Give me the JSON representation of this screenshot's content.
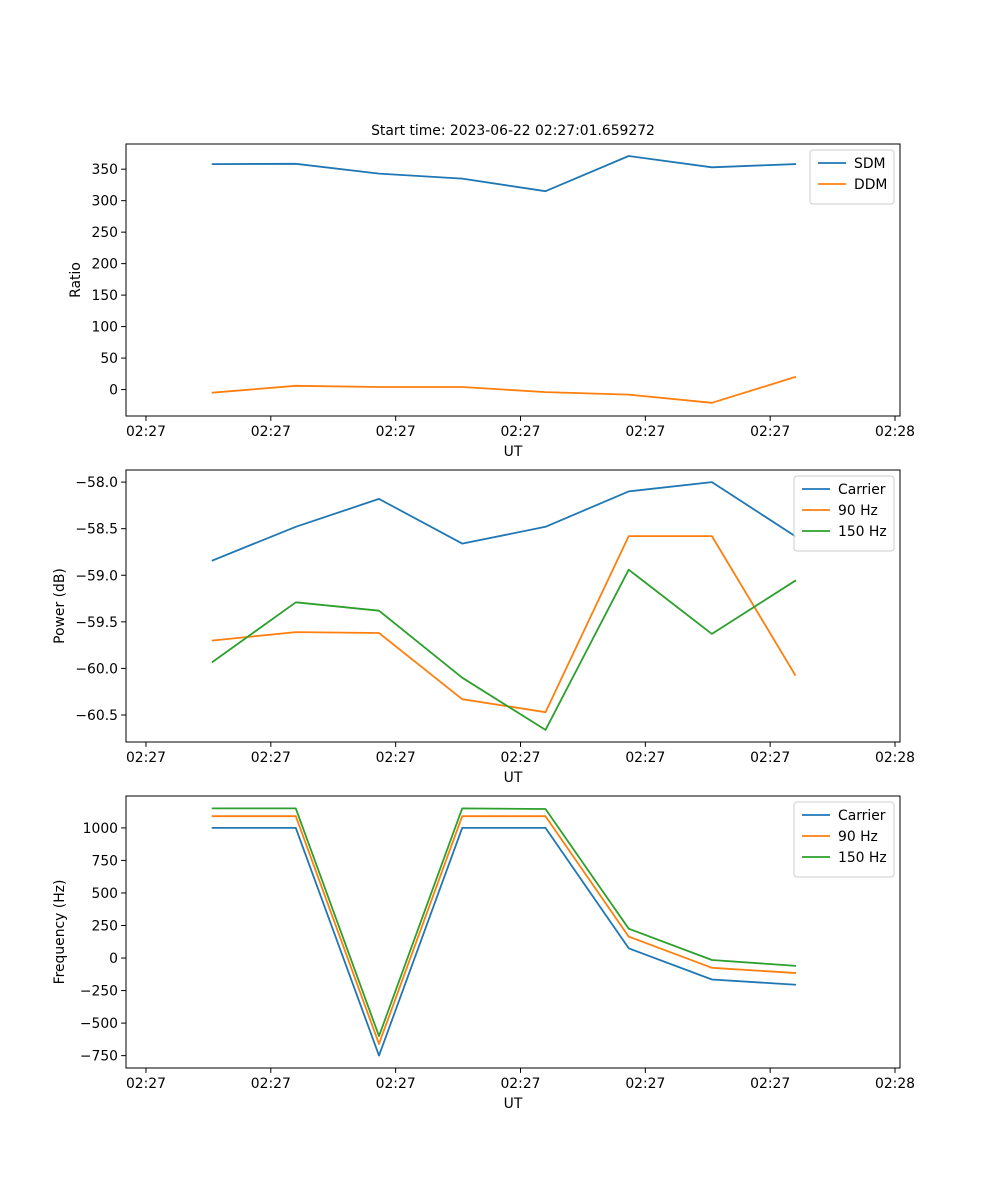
{
  "figure_title": "Start time: 2023-06-22 02:27:01.659272",
  "colors": {
    "c0": "#1f77b4",
    "c1": "#ff7f0e",
    "c2": "#2ca02c"
  },
  "chart_data": [
    {
      "type": "line",
      "xlabel": "UT",
      "ylabel": "Ratio",
      "xlim": [
        -0.12,
        4.53
      ],
      "x": [
        0.4,
        0.9,
        1.4,
        1.9,
        2.4,
        2.9,
        3.4,
        3.9
      ],
      "x_ticks": [
        {
          "x": 0.0,
          "label": "02:27"
        },
        {
          "x": 0.75,
          "label": "02:27"
        },
        {
          "x": 1.5,
          "label": "02:27"
        },
        {
          "x": 2.25,
          "label": "02:27"
        },
        {
          "x": 3.0,
          "label": "02:27"
        },
        {
          "x": 3.75,
          "label": "02:27"
        },
        {
          "x": 4.5,
          "label": "02:28"
        }
      ],
      "ylim": [
        -42,
        390
      ],
      "y_ticks": [
        0,
        50,
        100,
        150,
        200,
        250,
        300,
        350
      ],
      "legend": "top-right",
      "series": [
        {
          "name": "SDM",
          "color": "#1f77b4",
          "values": [
            358,
            358.5,
            343,
            335,
            315,
            371,
            353,
            358
          ]
        },
        {
          "name": "DDM",
          "color": "#ff7f0e",
          "values": [
            -5,
            6,
            4,
            4,
            -4,
            -8,
            -21,
            20
          ]
        }
      ]
    },
    {
      "type": "line",
      "xlabel": "UT",
      "ylabel": "Power (dB)",
      "xlim": [
        -0.12,
        4.53
      ],
      "x": [
        0.4,
        0.9,
        1.4,
        1.9,
        2.4,
        2.9,
        3.4,
        3.9
      ],
      "x_ticks": [
        {
          "x": 0.0,
          "label": "02:27"
        },
        {
          "x": 0.75,
          "label": "02:27"
        },
        {
          "x": 1.5,
          "label": "02:27"
        },
        {
          "x": 2.25,
          "label": "02:27"
        },
        {
          "x": 3.0,
          "label": "02:27"
        },
        {
          "x": 3.75,
          "label": "02:27"
        },
        {
          "x": 4.5,
          "label": "02:28"
        }
      ],
      "ylim": [
        -60.79,
        -57.87
      ],
      "y_ticks": [
        -60.5,
        -60.0,
        -59.5,
        -59.0,
        -58.5,
        -58.0
      ],
      "y_tick_labels": [
        "−60.5",
        "−60.0",
        "−59.5",
        "−59.0",
        "−58.5",
        "−58.0"
      ],
      "legend": "top-right",
      "series": [
        {
          "name": "Carrier",
          "color": "#1f77b4",
          "values": [
            -58.84,
            -58.48,
            -58.18,
            -58.66,
            -58.48,
            -58.1,
            -58.0,
            -58.58
          ]
        },
        {
          "name": "90 Hz",
          "color": "#ff7f0e",
          "values": [
            -59.7,
            -59.61,
            -59.62,
            -60.33,
            -60.47,
            -58.58,
            -58.58,
            -60.07
          ]
        },
        {
          "name": "150 Hz",
          "color": "#2ca02c",
          "values": [
            -59.93,
            -59.29,
            -59.38,
            -60.1,
            -60.66,
            -58.94,
            -59.63,
            -59.06
          ]
        }
      ]
    },
    {
      "type": "line",
      "xlabel": "UT",
      "ylabel": "Frequency (Hz)",
      "xlim": [
        -0.12,
        4.53
      ],
      "x": [
        0.4,
        0.9,
        1.4,
        1.9,
        2.4,
        2.9,
        3.4,
        3.9
      ],
      "x_ticks": [
        {
          "x": 0.0,
          "label": "02:27"
        },
        {
          "x": 0.75,
          "label": "02:27"
        },
        {
          "x": 1.5,
          "label": "02:27"
        },
        {
          "x": 2.25,
          "label": "02:27"
        },
        {
          "x": 3.0,
          "label": "02:27"
        },
        {
          "x": 3.75,
          "label": "02:27"
        },
        {
          "x": 4.5,
          "label": "02:28"
        }
      ],
      "ylim": [
        -845,
        1245
      ],
      "y_ticks": [
        -750,
        -500,
        -250,
        0,
        250,
        500,
        750,
        1000
      ],
      "y_tick_labels": [
        "−750",
        "−500",
        "−250",
        "0",
        "250",
        "500",
        "750",
        "1000"
      ],
      "legend": "top-right",
      "series": [
        {
          "name": "Carrier",
          "color": "#1f77b4",
          "values": [
            1000,
            1000,
            -750,
            1000,
            1000,
            75,
            -165,
            -205
          ]
        },
        {
          "name": "90 Hz",
          "color": "#ff7f0e",
          "values": [
            1090,
            1090,
            -660,
            1090,
            1090,
            165,
            -75,
            -115
          ]
        },
        {
          "name": "150 Hz",
          "color": "#2ca02c",
          "values": [
            1150,
            1150,
            -600,
            1150,
            1145,
            225,
            -15,
            -60
          ]
        }
      ]
    }
  ]
}
